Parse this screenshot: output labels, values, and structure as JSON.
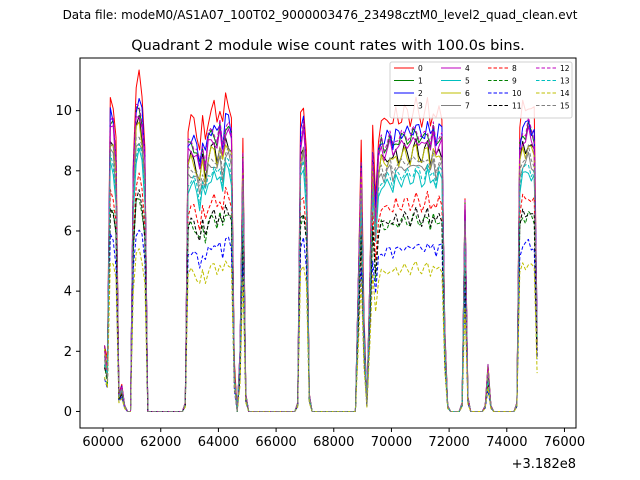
{
  "chart_data": {
    "type": "line",
    "suptitle": "Data file: modeM0/AS1A07_100T02_9000003476_23498cztM0_level2_quad_clean.evt",
    "title": "Quadrant 2 module wise count rates with 100.0s bins.",
    "xlabel": "",
    "ylabel": "",
    "x_offset_label": "+3.182e8",
    "xlim": [
      59200,
      76400
    ],
    "ylim": [
      -0.55,
      11.75
    ],
    "x_ticks": [
      60000,
      62000,
      64000,
      66000,
      68000,
      70000,
      72000,
      74000,
      76000
    ],
    "x_tick_labels": [
      "60000",
      "62000",
      "64000",
      "66000",
      "68000",
      "70000",
      "72000",
      "74000",
      "76000"
    ],
    "y_ticks": [
      0,
      2,
      4,
      6,
      8,
      10
    ],
    "y_tick_labels": [
      "0",
      "2",
      "4",
      "6",
      "8",
      "10"
    ],
    "legend_position": "upper-right",
    "series": [
      {
        "name": "0",
        "color": "#ff0000",
        "dash": "solid",
        "scale": 1.0
      },
      {
        "name": "1",
        "color": "#008000",
        "dash": "solid",
        "scale": 0.92
      },
      {
        "name": "2",
        "color": "#0000ff",
        "dash": "solid",
        "scale": 0.94
      },
      {
        "name": "3",
        "color": "#000000",
        "dash": "solid",
        "scale": 0.87
      },
      {
        "name": "4",
        "color": "#bf00bf",
        "dash": "solid",
        "scale": 0.9
      },
      {
        "name": "5",
        "color": "#00bfbf",
        "dash": "solid",
        "scale": 0.78
      },
      {
        "name": "6",
        "color": "#bfbf00",
        "dash": "solid",
        "scale": 0.86
      },
      {
        "name": "7",
        "color": "#808080",
        "dash": "solid",
        "scale": 0.82
      },
      {
        "name": "8",
        "color": "#ff0000",
        "dash": "dashed",
        "scale": 0.7
      },
      {
        "name": "9",
        "color": "#008000",
        "dash": "dashed",
        "scale": 0.64
      },
      {
        "name": "10",
        "color": "#0000ff",
        "dash": "dashed",
        "scale": 0.55
      },
      {
        "name": "11",
        "color": "#000000",
        "dash": "dashed",
        "scale": 0.65
      },
      {
        "name": "12",
        "color": "#bf00bf",
        "dash": "dashed",
        "scale": 0.93
      },
      {
        "name": "13",
        "color": "#00bfbf",
        "dash": "dashed",
        "scale": 0.8
      },
      {
        "name": "14",
        "color": "#bfbf00",
        "dash": "dashed",
        "scale": 0.48
      },
      {
        "name": "15",
        "color": "#808080",
        "dash": "dashed",
        "scale": 0.84
      }
    ],
    "x": [
      60050,
      60150,
      60250,
      60350,
      60450,
      60550,
      60650,
      60750,
      60850,
      60950,
      61050,
      61150,
      61250,
      61350,
      61450,
      61550,
      61650,
      61750,
      61850,
      61950,
      62050,
      62150,
      62250,
      62350,
      62450,
      62550,
      62650,
      62750,
      62850,
      62950,
      63050,
      63150,
      63250,
      63350,
      63450,
      63550,
      63650,
      63750,
      63850,
      63950,
      64050,
      64150,
      64250,
      64350,
      64450,
      64550,
      64650,
      64750,
      64850,
      64950,
      65050,
      65150,
      65250,
      65350,
      65450,
      65550,
      65650,
      65750,
      65850,
      65950,
      66050,
      66150,
      66250,
      66350,
      66450,
      66550,
      66650,
      66750,
      66850,
      66950,
      67050,
      67150,
      67250,
      67350,
      67450,
      67550,
      67650,
      67750,
      67850,
      67950,
      68050,
      68150,
      68250,
      68350,
      68450,
      68550,
      68650,
      68750,
      68850,
      68950,
      69050,
      69150,
      69250,
      69350,
      69450,
      69550,
      69650,
      69750,
      69850,
      69950,
      70050,
      70150,
      70250,
      70350,
      70450,
      70550,
      70650,
      70750,
      70850,
      70950,
      71050,
      71150,
      71250,
      71350,
      71450,
      71550,
      71650,
      71750,
      71850,
      71950,
      72050,
      72150,
      72250,
      72350,
      72450,
      72550,
      72650,
      72750,
      72850,
      72950,
      73050,
      73150,
      73250,
      73350,
      73450,
      73550,
      73650,
      73750,
      73850,
      73950,
      74050,
      74150,
      74250,
      74350,
      74450,
      74550,
      74650,
      74750,
      74850,
      74950,
      75050,
      75150,
      75250
    ],
    "reference_values": [
      2.2,
      1.5,
      10.5,
      10.3,
      9.0,
      0.6,
      0.9,
      0.2,
      0,
      0,
      8.5,
      10.8,
      11.1,
      10.5,
      9.0,
      0,
      0,
      0,
      0,
      0,
      0,
      0,
      0,
      0,
      0,
      0,
      0,
      0,
      0.3,
      9.5,
      9.7,
      9.6,
      9.3,
      8.8,
      9.6,
      9.0,
      9.8,
      10.0,
      10.1,
      9.7,
      10.2,
      9.5,
      10.4,
      10.3,
      9.9,
      1.5,
      0,
      2.0,
      9.1,
      0.6,
      0,
      0,
      0,
      0,
      0,
      0,
      0,
      0,
      0,
      0,
      0,
      0,
      0,
      0,
      0,
      0,
      0,
      0.3,
      9.8,
      10.3,
      8.8,
      0.6,
      0,
      0,
      0,
      0,
      0,
      0,
      0,
      0,
      0,
      0,
      0,
      0,
      0,
      0,
      0,
      0,
      4.5,
      8.9,
      3.0,
      0.3,
      4.5,
      9.3,
      7.0,
      9.2,
      9.7,
      9.5,
      9.7,
      9.8,
      9.5,
      9.9,
      9.7,
      9.8,
      10.0,
      9.9,
      9.7,
      10.0,
      10.2,
      9.9,
      9.7,
      9.9,
      10.2,
      9.6,
      10.1,
      9.6,
      10.0,
      9.9,
      2.8,
      0.2,
      0,
      0,
      0,
      0,
      0.3,
      7.3,
      0.5,
      0,
      0,
      0,
      0,
      0,
      0.2,
      1.5,
      0.2,
      0,
      0,
      0,
      0,
      0,
      0,
      0,
      0,
      0.3,
      9.5,
      10.1,
      10.0,
      10.3,
      10.0,
      9.9,
      2.9
    ]
  }
}
